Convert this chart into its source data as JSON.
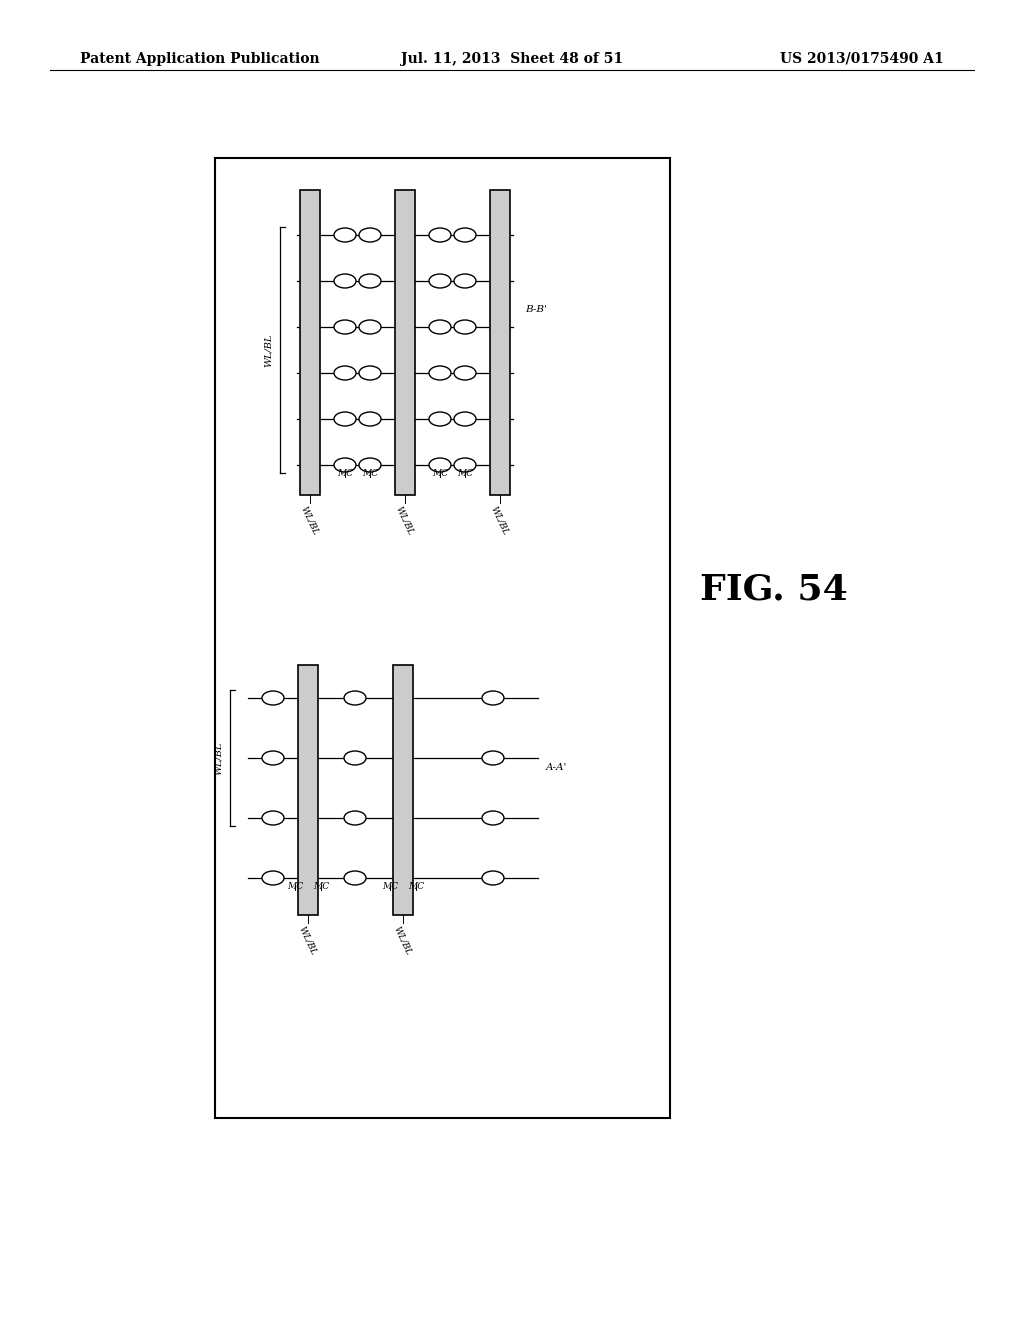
{
  "header_left": "Patent Application Publication",
  "header_mid": "Jul. 11, 2013  Sheet 48 of 51",
  "header_right": "US 2013/0175490 A1",
  "fig_label": "FIG. 54",
  "bg_color": "#ffffff",
  "line_color": "#000000",
  "header_fontsize": 10,
  "fig_label_fontsize": 26,
  "label_fontsize": 7.0
}
